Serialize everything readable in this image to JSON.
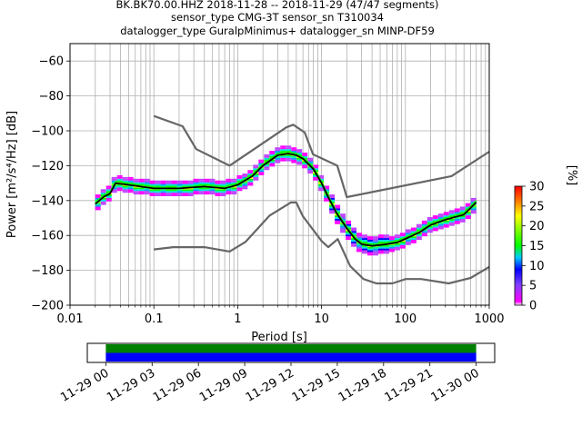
{
  "header": {
    "title_line1": "BK.BK70.00.HHZ   2018-11-28 -- 2018-11-29  (47/47 segments)",
    "title_line2": "sensor_type CMG-3T sensor_sn T310034",
    "title_line3": "datalogger_type GuralpMinimus+ datalogger_sn MINP-DF59"
  },
  "chart_data": [
    {
      "type": "heatmap",
      "title": "BK.BK70.00.HHZ   2018-11-28 -- 2018-11-29  (47/47 segments)",
      "xlabel": "Period [s]",
      "ylabel": "Power [m²/s⁴/Hz] [dB]",
      "x_scale": "log",
      "xlim": [
        0.01,
        1000
      ],
      "ylim": [
        -200,
        -50
      ],
      "x_ticks": [
        0.01,
        0.1,
        1,
        10,
        100,
        1000
      ],
      "x_tick_labels": [
        "0.01",
        "0.1",
        "1",
        "10",
        "100",
        "1000"
      ],
      "y_ticks": [
        -200,
        -180,
        -160,
        -140,
        -120,
        -100,
        -80,
        -60
      ],
      "y_tick_labels": [
        "−200",
        "−180",
        "−160",
        "−140",
        "−120",
        "−100",
        "−80",
        "−60"
      ],
      "grid": true,
      "colorbar": {
        "label": "[%]",
        "range": [
          0,
          30
        ],
        "ticks": [
          0,
          5,
          10,
          15,
          20,
          25,
          30
        ],
        "colormap": "pqlx"
      },
      "series": [
        {
          "name": "",
          "role": "mean",
          "color": "#000000",
          "x": [
            0.02,
            0.025,
            0.03,
            0.035,
            0.05,
            0.1,
            0.2,
            0.4,
            0.7,
            1,
            1.5,
            2,
            3,
            4,
            5,
            6,
            8,
            10,
            12,
            15,
            20,
            25,
            30,
            40,
            60,
            80,
            100,
            150,
            200,
            300,
            500,
            700
          ],
          "y": [
            -142,
            -138,
            -136,
            -130,
            -131,
            -133,
            -133,
            -132,
            -133,
            -131,
            -126,
            -120,
            -114,
            -113,
            -114,
            -116,
            -122,
            -130,
            -138,
            -147,
            -156,
            -162,
            -165,
            -166,
            -165,
            -164,
            -162,
            -158,
            -154,
            -151,
            -148,
            -141
          ]
        },
        {
          "name": "",
          "role": "mode",
          "color": "#00ff00",
          "x": [
            0.02,
            0.025,
            0.03,
            0.035,
            0.05,
            0.1,
            0.2,
            0.4,
            0.7,
            1,
            1.5,
            2,
            3,
            4,
            5,
            6,
            8,
            10,
            12,
            15,
            20,
            25,
            30,
            40,
            60,
            80,
            100,
            150,
            200,
            300,
            500,
            700
          ],
          "y": [
            -141,
            -137,
            -135,
            -129,
            -130,
            -132,
            -133,
            -131,
            -132,
            -130,
            -125,
            -119,
            -113,
            -112,
            -113,
            -115,
            -121,
            -129,
            -137,
            -146,
            -155,
            -161,
            -164,
            -165,
            -164,
            -163,
            -161,
            -157,
            -153,
            -150,
            -147,
            -140
          ]
        },
        {
          "name": "",
          "role": "noise-model-high",
          "color": "#666666",
          "x": [
            0.1,
            0.22,
            0.32,
            0.8,
            3.8,
            4.6,
            6.3,
            7.9,
            15.4,
            20,
            354.8,
            1000
          ],
          "y": [
            -91.5,
            -97.4,
            -110.5,
            -120,
            -98,
            -96.5,
            -101,
            -113.5,
            -120,
            -138,
            -126,
            -112
          ]
        },
        {
          "name": "",
          "role": "noise-model-low",
          "color": "#666666",
          "x": [
            0.1,
            0.17,
            0.4,
            0.8,
            1.24,
            2.4,
            4.3,
            5,
            6,
            10,
            12,
            15.6,
            21.9,
            31.6,
            45,
            70,
            101,
            154,
            328,
            600,
            1000
          ],
          "y": [
            -168,
            -166.7,
            -166.7,
            -169.2,
            -163.7,
            -148.6,
            -141.1,
            -141.1,
            -149,
            -163.2,
            -166.7,
            -162.1,
            -177.5,
            -185,
            -187.5,
            -187.5,
            -185,
            -185,
            -187.5,
            -184.4,
            -178
          ]
        }
      ]
    },
    {
      "type": "timeline",
      "x_tick_labels": [
        "11-29 00",
        "11-29 03",
        "11-29 06",
        "11-29 09",
        "11-29 12",
        "11-29 15",
        "11-29 18",
        "11-29 21",
        "11-30 00"
      ],
      "x_tick_hours": [
        0,
        3,
        6,
        9,
        12,
        15,
        18,
        21,
        24
      ],
      "xlim_hours": [
        -1.2,
        25.2
      ],
      "coverage": [
        {
          "row": "top",
          "color": "#008000",
          "start_hour": 0,
          "end_hour": 24
        },
        {
          "row": "bottom",
          "color": "#0000ff",
          "start_hour": 0,
          "end_hour": 24
        }
      ]
    }
  ]
}
